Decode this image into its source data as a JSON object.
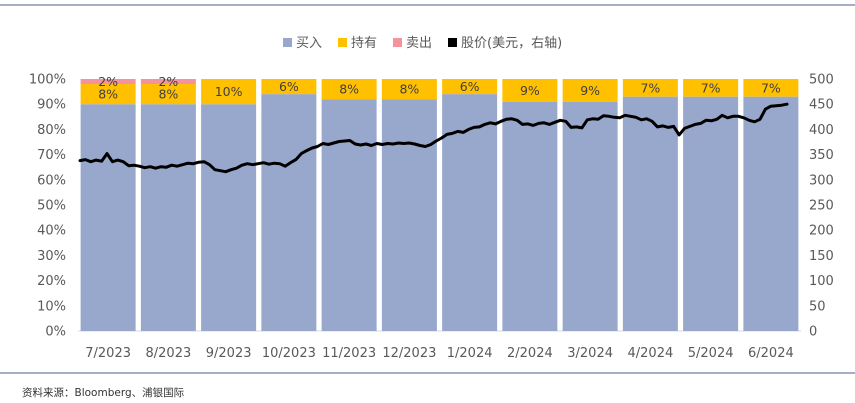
{
  "chart_data": {
    "type": "bar",
    "stacked": true,
    "percent_stacked": true,
    "categories": [
      "7/2023",
      "8/2023",
      "9/2023",
      "10/2023",
      "11/2023",
      "12/2023",
      "1/2024",
      "2/2024",
      "3/2024",
      "4/2024",
      "5/2024",
      "6/2024"
    ],
    "series": [
      {
        "name": "买入",
        "color": "#97A8CC",
        "values": [
          90,
          90,
          90,
          94,
          92,
          92,
          94,
          91,
          91,
          93,
          93,
          93
        ]
      },
      {
        "name": "持有",
        "color": "#FFC000",
        "values": [
          8,
          8,
          10,
          6,
          8,
          8,
          6,
          9,
          9,
          7,
          7,
          7
        ],
        "labels": [
          "8%",
          "8%",
          "10%",
          "6%",
          "8%",
          "8%",
          "6%",
          "9%",
          "9%",
          "7%",
          "7%",
          "7%"
        ]
      },
      {
        "name": "卖出",
        "color": "#F4929E",
        "values": [
          2,
          2,
          0,
          0,
          0,
          0,
          0,
          0,
          0,
          0,
          0,
          0
        ],
        "labels": [
          "2%",
          "2%",
          "",
          "",
          "",
          "",
          "",
          "",
          "",
          "",
          "",
          ""
        ]
      }
    ],
    "line_series": {
      "name": "股价(美元，右轴)",
      "color": "#000000",
      "axis": "right",
      "values": [
        338,
        340,
        336,
        339,
        337,
        352,
        336,
        339,
        336,
        328,
        329,
        327,
        324,
        326,
        323,
        326,
        325,
        329,
        327,
        330,
        333,
        332,
        335,
        336,
        330,
        320,
        318,
        316,
        320,
        323,
        329,
        332,
        330,
        332,
        334,
        331,
        333,
        332,
        327,
        334,
        340,
        352,
        358,
        363,
        366,
        372,
        370,
        373,
        376,
        377,
        378,
        371,
        369,
        371,
        368,
        372,
        370,
        372,
        371,
        373,
        372,
        373,
        371,
        368,
        366,
        370,
        377,
        383,
        390,
        392,
        396,
        394,
        400,
        404,
        405,
        410,
        413,
        411,
        416,
        420,
        421,
        418,
        410,
        411,
        408,
        412,
        413,
        410,
        414,
        418,
        416,
        404,
        405,
        403,
        419,
        421,
        420,
        427,
        426,
        424,
        423,
        428,
        426,
        424,
        419,
        421,
        416,
        405,
        407,
        404,
        406,
        389,
        402,
        406,
        410,
        412,
        418,
        417,
        420,
        428,
        423,
        426,
        426,
        423,
        418,
        415,
        420,
        440,
        446,
        447,
        448,
        450
      ]
    },
    "y_left": {
      "ticks": [
        "0%",
        "10%",
        "20%",
        "30%",
        "40%",
        "50%",
        "60%",
        "70%",
        "80%",
        "90%",
        "100%"
      ],
      "lim": [
        0,
        100
      ]
    },
    "y_right": {
      "ticks": [
        "0",
        "50",
        "100",
        "150",
        "200",
        "250",
        "300",
        "350",
        "400",
        "450",
        "500"
      ],
      "lim": [
        0,
        500
      ]
    },
    "legend": {
      "position": "top-center",
      "items": [
        "买入",
        "持有",
        "卖出",
        "股价(美元，右轴)"
      ]
    }
  },
  "source": "资料来源：Bloomberg、浦银国际"
}
